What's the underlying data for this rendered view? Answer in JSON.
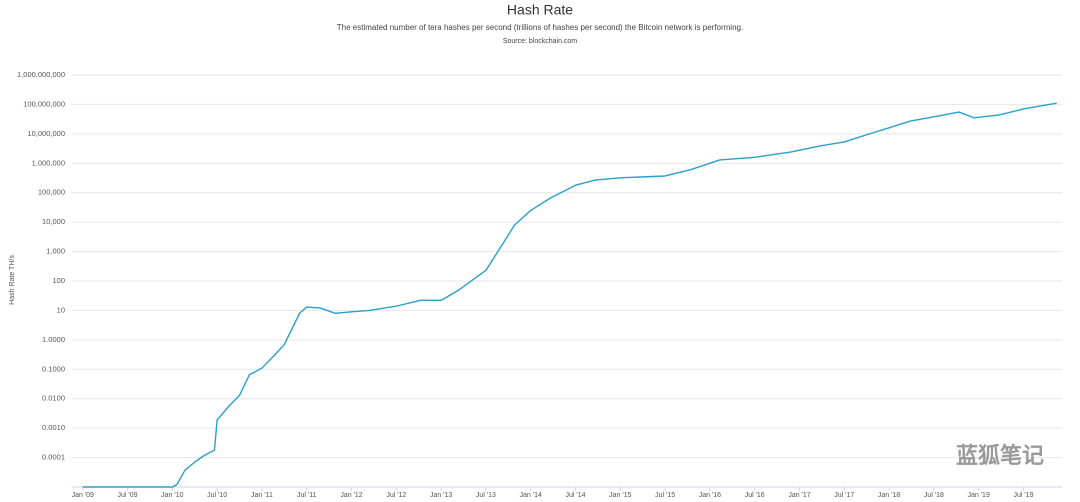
{
  "chart_data": {
    "type": "line",
    "title": "Hash Rate",
    "subtitle": "The estimated number of tera hashes per second (trillions of hashes per second) the Bitcoin network is performing.",
    "source": "Source: blockchain.com",
    "y_label": "Hash Rate TH/s",
    "watermark": "蓝狐笔记",
    "color": "#2a9fc9",
    "log_scale": true,
    "grid": true,
    "x": [
      2009.0,
      2009.5,
      2010.0,
      2010.05,
      2010.14,
      2010.25,
      2010.36,
      2010.47,
      2010.5,
      2010.64,
      2010.75,
      2010.86,
      2011.0,
      2011.14,
      2011.25,
      2011.33,
      2011.42,
      2011.5,
      2011.65,
      2011.82,
      2012.0,
      2012.2,
      2012.5,
      2012.77,
      2013.0,
      2013.2,
      2013.5,
      2013.65,
      2013.82,
      2014.0,
      2014.22,
      2014.5,
      2014.72,
      2015.0,
      2015.5,
      2015.78,
      2016.11,
      2016.5,
      2016.9,
      2017.23,
      2017.5,
      2017.78,
      2018.0,
      2018.23,
      2018.5,
      2018.78,
      2018.95,
      2019.23,
      2019.5,
      2019.87
    ],
    "values": [
      1e-05,
      1e-05,
      1e-05,
      1.2e-05,
      3.7e-05,
      7e-05,
      0.00012,
      0.00018,
      0.0019,
      0.006,
      0.013,
      0.065,
      0.11,
      0.3,
      0.7,
      2.2,
      8,
      13,
      12,
      8,
      9,
      10,
      14,
      22,
      22,
      50,
      230,
      1200,
      8000,
      25000,
      66000,
      180000,
      270000,
      320000,
      370000,
      600000,
      1300000,
      1600000,
      2400000,
      3900000,
      5300000,
      10000000,
      16000000,
      27000000,
      38000000,
      55000000,
      35000000,
      44000000,
      70000000,
      110000000
    ],
    "xlim": [
      2008.88,
      2019.93
    ],
    "xticks": [
      {
        "value": 2009.0,
        "label": "Jan '09"
      },
      {
        "value": 2009.5,
        "label": "Jul '09"
      },
      {
        "value": 2010.0,
        "label": "Jan '10"
      },
      {
        "value": 2010.5,
        "label": "Jul '10"
      },
      {
        "value": 2011.0,
        "label": "Jan '11"
      },
      {
        "value": 2011.5,
        "label": "Jul '11"
      },
      {
        "value": 2012.0,
        "label": "Jan '12"
      },
      {
        "value": 2012.5,
        "label": "Jul '12"
      },
      {
        "value": 2013.0,
        "label": "Jan '13"
      },
      {
        "value": 2013.5,
        "label": "Jul '13"
      },
      {
        "value": 2014.0,
        "label": "Jan '14"
      },
      {
        "value": 2014.5,
        "label": "Jul '14"
      },
      {
        "value": 2015.0,
        "label": "Jan '15"
      },
      {
        "value": 2015.5,
        "label": "Jul '15"
      },
      {
        "value": 2016.0,
        "label": "Jan '16"
      },
      {
        "value": 2016.5,
        "label": "Jul '16"
      },
      {
        "value": 2017.0,
        "label": "Jan '17"
      },
      {
        "value": 2017.5,
        "label": "Jul '17"
      },
      {
        "value": 2018.0,
        "label": "Jan '18"
      },
      {
        "value": 2018.5,
        "label": "Jul '18"
      },
      {
        "value": 2019.0,
        "label": "Jan '19"
      },
      {
        "value": 2019.5,
        "label": "Jul '19"
      }
    ],
    "ylim": [
      1e-05,
      1000000000
    ],
    "yticks": [
      {
        "value": 0.0001,
        "label": "0.0001"
      },
      {
        "value": 0.001,
        "label": "0.0010"
      },
      {
        "value": 0.01,
        "label": "0.0100"
      },
      {
        "value": 0.1,
        "label": "0.1000"
      },
      {
        "value": 1,
        "label": "1.0000"
      },
      10,
      100,
      {
        "value": 1000,
        "label": "1,000"
      },
      {
        "value": 10000,
        "label": "10,000"
      },
      {
        "value": 100000,
        "label": "100,000"
      },
      {
        "value": 1000000,
        "label": "1,000,000"
      },
      {
        "value": 10000000,
        "label": "10,000,000"
      },
      {
        "value": 100000000,
        "label": "100,000,000"
      },
      {
        "value": 1000000000,
        "label": "1,000,000,000"
      }
    ]
  }
}
